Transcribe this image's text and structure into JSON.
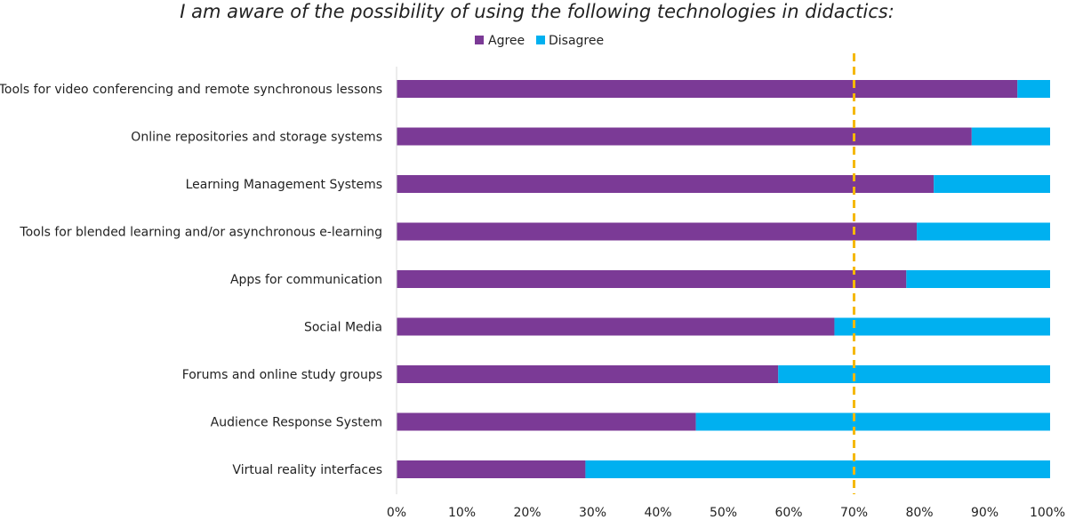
{
  "chart_data": {
    "type": "bar",
    "orientation": "horizontal",
    "stacked": true,
    "title": "I am aware of the possibility of using the following technologies in didactics:",
    "categories": [
      "Tools for video conferencing and remote synchronous lessons",
      "Online repositories and storage systems",
      "Learning Management Systems",
      "Tools for blended learning and/or asynchronous e-learning",
      "Apps for communication",
      "Social Media",
      "Forums and online study groups",
      "Audience Response System",
      "Virtual reality interfaces"
    ],
    "series": [
      {
        "name": "Agree",
        "color": "#7b3a96",
        "values": [
          95,
          88,
          82.2,
          79.6,
          78,
          67,
          58.4,
          45.8,
          28.9
        ]
      },
      {
        "name": "Disagree",
        "color": "#00b0f0",
        "values": [
          5,
          12,
          17.8,
          20.4,
          22,
          33,
          41.6,
          54.2,
          71.1
        ]
      }
    ],
    "xlim": [
      0,
      100
    ],
    "xticks": [
      "0%",
      "10%",
      "20%",
      "30%",
      "40%",
      "50%",
      "60%",
      "70%",
      "80%",
      "90%",
      "100%"
    ],
    "xtick_step": 10,
    "reference_line": {
      "value": 70,
      "color": "#f5b800",
      "style": "dashed"
    },
    "legend_position": "top-center",
    "grid": false
  }
}
